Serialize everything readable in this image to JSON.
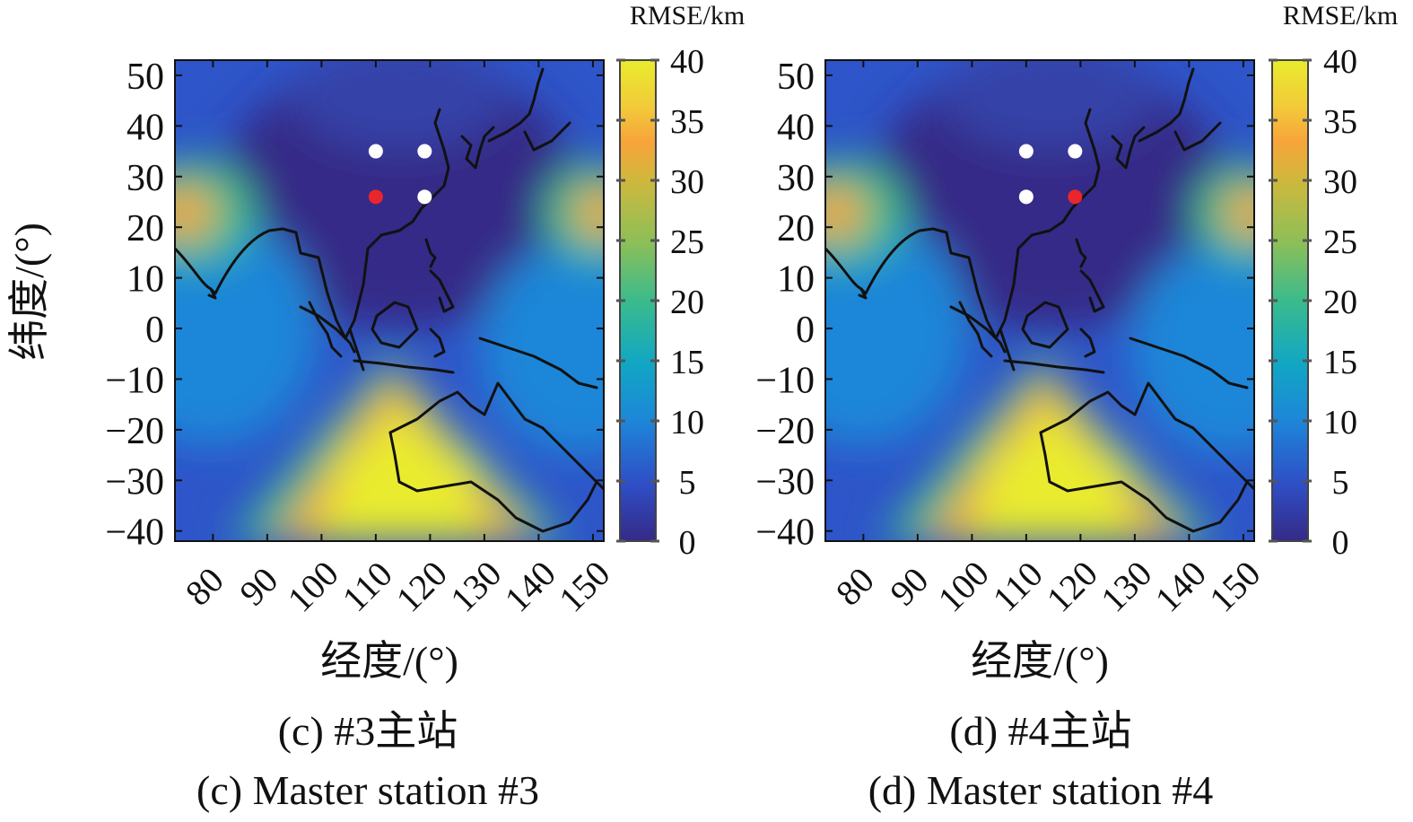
{
  "panels": [
    {
      "caption_zh": "(c) #3主站",
      "caption_en": "(c) Master station #3",
      "xlabel": "经度/(°)",
      "ylabel": "纬度/(°)",
      "colorbar_label": "RMSE/km",
      "master_index": 1
    },
    {
      "caption_zh": "(d) #4主站",
      "caption_en": "(d) Master station #4",
      "xlabel": "经度/(°)",
      "ylabel": "",
      "colorbar_label": "RMSE/km",
      "master_index": 3
    }
  ],
  "colors": {
    "station": "#ffffff",
    "master_station": "#e8262c",
    "coastline": "#111111",
    "colormap": [
      "#352a87",
      "#2f4fc7",
      "#1d86d8",
      "#11a7c4",
      "#3bbb8c",
      "#8cbf58",
      "#cfb83c",
      "#f7a43a",
      "#f2c93a",
      "#e9ec2d"
    ]
  },
  "chart_data": [
    {
      "type": "heatmap",
      "title": "(c) #3主站 / (c) Master station #3",
      "xlabel": "经度/(°)",
      "ylabel": "纬度/(°)",
      "xlim": [
        73,
        152
      ],
      "ylim": [
        -42,
        53
      ],
      "xticks": [
        80,
        90,
        100,
        110,
        120,
        130,
        140,
        150
      ],
      "yticks": [
        50,
        40,
        30,
        20,
        10,
        0,
        -10,
        -20,
        -30,
        -40
      ],
      "xtick_labels": [
        "80",
        "90",
        "100",
        "110",
        "120",
        "130",
        "140",
        "150"
      ],
      "ytick_labels": [
        "50",
        "40",
        "30",
        "20",
        "10",
        "0",
        "−10",
        "−20",
        "−30",
        "−40"
      ],
      "colorbar": {
        "label": "RMSE/km",
        "range": [
          0,
          40
        ],
        "ticks": [
          0,
          5,
          10,
          15,
          20,
          25,
          30,
          35,
          40
        ]
      },
      "stations": [
        {
          "lon": 110,
          "lat": 35,
          "master": false
        },
        {
          "lon": 119,
          "lat": 35,
          "master": false
        },
        {
          "lon": 110,
          "lat": 26,
          "master": true
        },
        {
          "lon": 119,
          "lat": 26,
          "master": false
        }
      ]
    },
    {
      "type": "heatmap",
      "title": "(d) #4主站 / (d) Master station #4",
      "xlabel": "经度/(°)",
      "ylabel": "",
      "xlim": [
        73,
        152
      ],
      "ylim": [
        -42,
        53
      ],
      "xticks": [
        80,
        90,
        100,
        110,
        120,
        130,
        140,
        150
      ],
      "yticks": [
        50,
        40,
        30,
        20,
        10,
        0,
        -10,
        -20,
        -30,
        -40
      ],
      "xtick_labels": [
        "80",
        "90",
        "100",
        "110",
        "120",
        "130",
        "140",
        "150"
      ],
      "ytick_labels": [
        "50",
        "40",
        "30",
        "20",
        "10",
        "0",
        "−10",
        "−20",
        "−30",
        "−40"
      ],
      "colorbar": {
        "label": "RMSE/km",
        "range": [
          0,
          40
        ],
        "ticks": [
          0,
          5,
          10,
          15,
          20,
          25,
          30,
          35,
          40
        ]
      },
      "stations": [
        {
          "lon": 110,
          "lat": 35,
          "master": false
        },
        {
          "lon": 119,
          "lat": 35,
          "master": false
        },
        {
          "lon": 110,
          "lat": 26,
          "master": false
        },
        {
          "lon": 119,
          "lat": 26,
          "master": true
        }
      ]
    }
  ]
}
